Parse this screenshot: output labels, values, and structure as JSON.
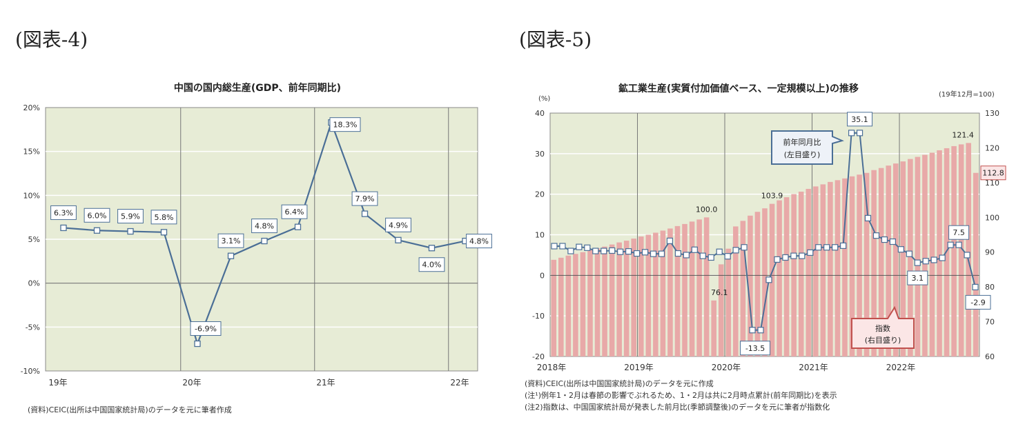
{
  "left": {
    "figure_label": "(図表-4)",
    "note": "(資料)CEIC(出所は中国国家統計局)のデータを元に筆者作成"
  },
  "right": {
    "figure_label": "(図表-5)",
    "notes": [
      "(資料)CEIC(出所は中国国家統計局)のデータを元に作成",
      "(注¹)例年1・2月は春節の影響でぶれるため、1・2月は共に2月時点累計(前年同期比)を表示",
      "(注2)指数は、中国国家統計局が発表した前月比(季節調整後)のデータを元に筆者が指数化"
    ]
  },
  "chart_data": [
    {
      "type": "line",
      "title": "中国の国内総生産(GDP、前年同期比)",
      "x_labels": [
        "19年",
        "20年",
        "21年",
        "22年"
      ],
      "values": [
        6.3,
        6.0,
        5.9,
        5.8,
        -6.9,
        3.1,
        4.8,
        6.4,
        18.3,
        7.9,
        4.9,
        4.0,
        4.8
      ],
      "data_labels": [
        "6.3%",
        "6.0%",
        "5.9%",
        "5.8%",
        "-6.9%",
        "3.1%",
        "4.8%",
        "6.4%",
        "18.3%",
        "7.9%",
        "4.9%",
        "4.0%",
        "4.8%"
      ],
      "y_ticks": [
        "20%",
        "15%",
        "10%",
        "5%",
        "0%",
        "-5%",
        "-10%"
      ],
      "ylim": [
        -10,
        20
      ],
      "grid": true,
      "colors": {
        "line": "#4a6e96",
        "plot_bg": "#e7ecd6",
        "label_border": "#4a6e96"
      }
    },
    {
      "type": "bar+line",
      "title": "鉱工業生産(実質付加価値ベース、一定規模以上)の推移",
      "left_axis_unit": "(%)",
      "right_axis_unit": "(19年12月=100)",
      "x_labels": [
        "2018年",
        "2019年",
        "2020年",
        "2021年",
        "2022年"
      ],
      "left_ticks": [
        "40",
        "30",
        "20",
        "10",
        "0",
        "-10",
        "-20"
      ],
      "right_ticks": [
        "130",
        "120",
        "110",
        "100",
        "90",
        "80",
        "70",
        "60"
      ],
      "left_ylim": [
        -20,
        40
      ],
      "right_ylim": [
        60,
        130
      ],
      "series": [
        {
          "name": "指数",
          "axis_label": "(右目盛り)",
          "type": "bar",
          "values": [
            87.8,
            88.4,
            89.0,
            89.5,
            90.0,
            90.6,
            91.1,
            91.6,
            92.2,
            92.8,
            93.3,
            93.9,
            94.5,
            95.0,
            95.6,
            96.2,
            96.8,
            97.5,
            98.1,
            98.8,
            99.4,
            100.0,
            76.1,
            86.5,
            91.0,
            97.4,
            99.0,
            100.5,
            101.6,
            102.6,
            103.9,
            104.9,
            105.8,
            106.7,
            107.4,
            108.2,
            108.9,
            109.5,
            110.2,
            110.7,
            111.2,
            111.8,
            112.3,
            112.8,
            113.6,
            114.2,
            114.9,
            115.5,
            116.1,
            116.8,
            117.4,
            118.0,
            118.6,
            119.3,
            119.9,
            120.5,
            121.0,
            121.4,
            112.8
          ],
          "data_labels": [
            {
              "index": 21,
              "text": "100.0"
            },
            {
              "index": 22,
              "text": "76.1"
            },
            {
              "index": 30,
              "text": "103.9"
            },
            {
              "index": 57,
              "text": "121.4"
            },
            {
              "index": 58,
              "text": "112.8"
            }
          ]
        },
        {
          "name": "前年同月比",
          "axis_label": "(左目盛り)",
          "type": "line",
          "values": [
            7.2,
            7.2,
            6.0,
            7.0,
            6.8,
            6.0,
            6.0,
            6.1,
            5.8,
            5.9,
            5.4,
            5.7,
            5.3,
            5.3,
            8.5,
            5.4,
            5.0,
            6.3,
            4.8,
            4.4,
            5.8,
            4.7,
            6.2,
            6.9,
            -13.5,
            -13.5,
            -1.1,
            3.9,
            4.4,
            4.8,
            4.8,
            5.6,
            6.9,
            6.9,
            6.9,
            7.3,
            35.1,
            35.1,
            14.1,
            9.8,
            8.8,
            8.3,
            6.4,
            5.3,
            3.1,
            3.5,
            3.8,
            4.3,
            7.5,
            7.5,
            5.0,
            -2.9
          ],
          "data_labels": [
            {
              "index": 24,
              "text": "-13.5"
            },
            {
              "index": 37,
              "text": "35.1"
            },
            {
              "index": 44,
              "text": "3.1"
            },
            {
              "index": 49,
              "text": "7.5"
            },
            {
              "index": 51,
              "text": "-2.9"
            }
          ]
        }
      ],
      "colors": {
        "bar": "#e8a9a8",
        "line": "#4a6e96",
        "plot_bg": "#e7ecd6",
        "index_callout": "#c0504d",
        "yoy_callout": "#4a6e96"
      }
    }
  ]
}
